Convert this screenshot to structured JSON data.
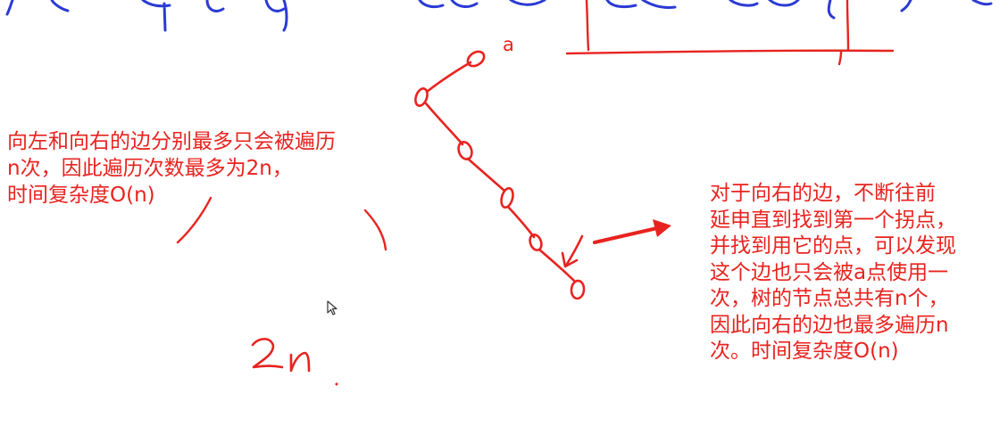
{
  "colors": {
    "red_ink": "#e8231f",
    "blue_ink": "#2b3bd4",
    "background": "#ffffff"
  },
  "annotations": {
    "node_label": "a",
    "left_note": [
      "向左和向右的边分别最多只会被遍历",
      "n次，因此遍历次数最多为2n，",
      "时间复杂度O(n)"
    ],
    "right_note": [
      "对于向右的边，不断往前",
      "延申直到找到第一个拐点，",
      "并找到用它的点，可以发现",
      "这个边也只会被a点使用一",
      "次，树的节点总共有n个，",
      "因此向右的边也最多遍历n",
      "次。时间复杂度O(n)"
    ],
    "handwritten_2n": "2n"
  },
  "icons": {
    "cursor": "mouse-pointer-icon",
    "arrow": "red-right-arrow-icon"
  }
}
